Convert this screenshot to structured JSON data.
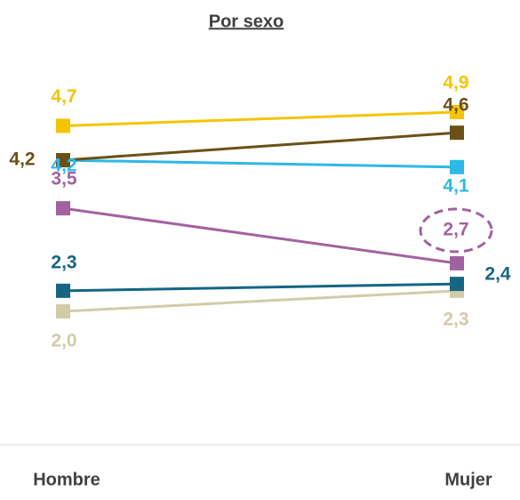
{
  "chart_data": {
    "type": "line",
    "title": "Por sexo",
    "categories": [
      "Hombre",
      "Mujer"
    ],
    "series": [
      {
        "color": "#f5c400",
        "values": [
          4.7,
          4.9
        ],
        "value_labels": [
          "4,7",
          "4,9"
        ]
      },
      {
        "color": "#2db8e8",
        "values": [
          4.2,
          4.1
        ],
        "value_labels": [
          "4,2",
          "4,1"
        ]
      },
      {
        "color": "#6b5017",
        "values": [
          4.2,
          4.6
        ],
        "value_labels": [
          "4,2",
          "4,6"
        ]
      },
      {
        "color": "#a2629f",
        "values": [
          3.5,
          2.7
        ],
        "value_labels": [
          "3,5",
          "2,7"
        ]
      },
      {
        "color": "#146682",
        "values": [
          2.3,
          2.4
        ],
        "value_labels": [
          "2,3",
          "2,4"
        ]
      },
      {
        "color": "#d3cba8",
        "values": [
          2.0,
          2.3
        ],
        "value_labels": [
          "2,0",
          "2,3"
        ]
      }
    ]
  }
}
